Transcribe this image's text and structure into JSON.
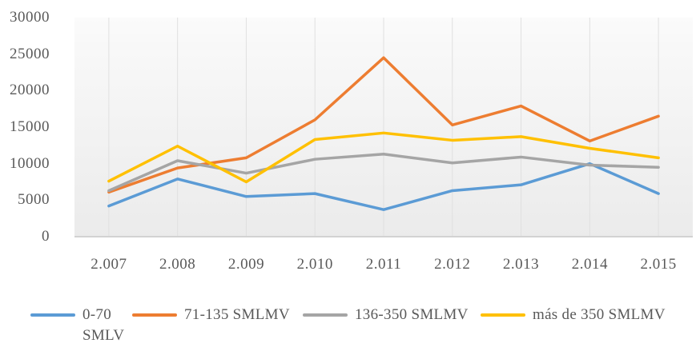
{
  "chart_data": {
    "type": "line",
    "title": "",
    "xlabel": "",
    "ylabel": "",
    "categories": [
      "2.007",
      "2.008",
      "2.009",
      "2.010",
      "2.011",
      "2.012",
      "2.013",
      "2.014",
      "2.015"
    ],
    "series": [
      {
        "name": "0-70 SMLV",
        "color": "#5B9BD5",
        "values": [
          4200,
          7900,
          5500,
          5900,
          3700,
          6300,
          7100,
          10000,
          5900
        ]
      },
      {
        "name": "71-135 SMLMV",
        "color": "#ED7D31",
        "values": [
          6100,
          9400,
          10800,
          16000,
          24500,
          15300,
          17900,
          13100,
          16500
        ]
      },
      {
        "name": "136-350 SMLMV",
        "color": "#A5A5A5",
        "values": [
          6300,
          10400,
          8700,
          10600,
          11300,
          10100,
          10900,
          9800,
          9500
        ]
      },
      {
        "name": "más de 350 SMLMV",
        "color": "#FFC000",
        "values": [
          7600,
          12400,
          7500,
          13300,
          14200,
          13200,
          13700,
          12100,
          10800
        ]
      }
    ],
    "legend_labels": [
      "0-70\nSMLV",
      "71-135 SMLMV",
      "136-350 SMLMV",
      "más de 350 SMLMV"
    ],
    "legend_position": "bottom",
    "ylim": [
      0,
      30000
    ],
    "ytick_interval": 5000,
    "yticks": [
      "0",
      "5000",
      "10000",
      "15000",
      "20000",
      "25000",
      "30000"
    ],
    "grid": "vertical-major",
    "axis_text_color": "#595959",
    "gridline_color": "#e0e0e0",
    "axis_line_color": "#d2d2d2"
  }
}
